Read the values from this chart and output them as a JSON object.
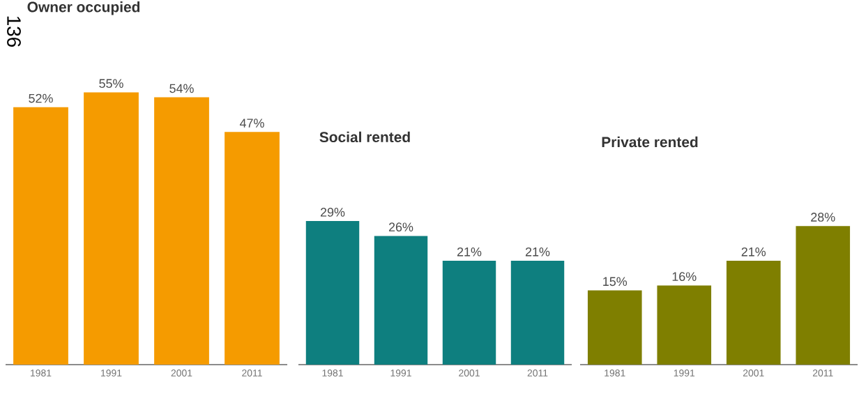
{
  "chart_data": [
    {
      "type": "bar",
      "title": "Owner occupied",
      "categories": [
        "1981",
        "1991",
        "2001",
        "2011"
      ],
      "values": [
        52,
        55,
        54,
        47
      ],
      "value_labels": [
        "52%",
        "55%",
        "54%",
        "47%"
      ],
      "color": "#f59b00",
      "tick_labels": "x",
      "annotations": [
        "136"
      ]
    },
    {
      "type": "bar",
      "title": "Social rented",
      "categories": [
        "1981",
        "1991",
        "2001",
        "2011"
      ],
      "values": [
        29,
        26,
        21,
        21
      ],
      "value_labels": [
        "29%",
        "26%",
        "21%",
        "21%"
      ],
      "color": "#0e7f7f",
      "tick_labels": "x"
    },
    {
      "type": "bar",
      "title": "Private rented",
      "categories": [
        "1981",
        "1991",
        "2001",
        "2011"
      ],
      "values": [
        15,
        16,
        21,
        28
      ],
      "value_labels": [
        "15%",
        "16%",
        "21%",
        "28%"
      ],
      "color": "#7f7f00",
      "tick_labels": "x"
    }
  ]
}
